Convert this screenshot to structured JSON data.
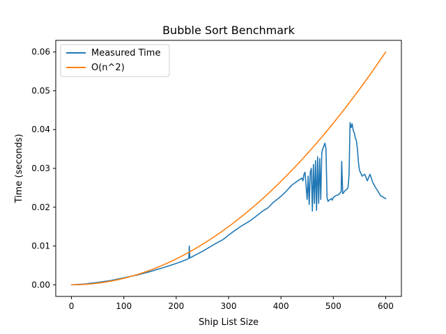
{
  "chart_data": {
    "type": "line",
    "title": "Bubble Sort Benchmark",
    "xlabel": "Ship List Size",
    "ylabel": "Time (seconds)",
    "xlim": [
      -30,
      630
    ],
    "ylim": [
      -0.003,
      0.063
    ],
    "xticks": [
      0,
      100,
      200,
      300,
      400,
      500,
      600
    ],
    "xtick_labels": [
      "0",
      "100",
      "200",
      "300",
      "400",
      "500",
      "600"
    ],
    "yticks": [
      0.0,
      0.01,
      0.02,
      0.03,
      0.04,
      0.05,
      0.06
    ],
    "ytick_labels": [
      "0.00",
      "0.01",
      "0.02",
      "0.03",
      "0.04",
      "0.05",
      "0.06"
    ],
    "grid": false,
    "legend_position": "top-left",
    "series": [
      {
        "name": "Measured Time",
        "color": "#1f77b4",
        "x": [
          0,
          25,
          50,
          75,
          100,
          125,
          150,
          175,
          200,
          210,
          220,
          224,
          225,
          226,
          230,
          240,
          250,
          260,
          275,
          290,
          300,
          310,
          325,
          340,
          350,
          365,
          375,
          385,
          400,
          410,
          420,
          430,
          440,
          442,
          444,
          446,
          448,
          450,
          452,
          454,
          456,
          458,
          460,
          462,
          464,
          466,
          468,
          470,
          472,
          474,
          476,
          478,
          480,
          482,
          484,
          486,
          488,
          490,
          492,
          494,
          496,
          498,
          500,
          505,
          510,
          515,
          516,
          518,
          520,
          522,
          525,
          528,
          530,
          532,
          534,
          536,
          538,
          540,
          542,
          544,
          546,
          548,
          550,
          555,
          560,
          565,
          570,
          575,
          580,
          585,
          590,
          600
        ],
        "y": [
          0.0,
          0.0002,
          0.0006,
          0.0011,
          0.0018,
          0.0025,
          0.0034,
          0.0044,
          0.0055,
          0.006,
          0.0065,
          0.0068,
          0.01,
          0.0069,
          0.0072,
          0.0079,
          0.0086,
          0.0094,
          0.0106,
          0.0117,
          0.0128,
          0.0138,
          0.0152,
          0.0164,
          0.0174,
          0.019,
          0.0198,
          0.0212,
          0.0228,
          0.0241,
          0.0256,
          0.0266,
          0.0275,
          0.0268,
          0.0285,
          0.029,
          0.0255,
          0.022,
          0.028,
          0.0207,
          0.029,
          0.03,
          0.019,
          0.031,
          0.021,
          0.032,
          0.0192,
          0.033,
          0.021,
          0.0325,
          0.022,
          0.034,
          0.0351,
          0.0358,
          0.0365,
          0.035,
          0.0225,
          0.0215,
          0.0218,
          0.022,
          0.0222,
          0.0218,
          0.0225,
          0.023,
          0.0232,
          0.024,
          0.0318,
          0.0235,
          0.0238,
          0.0242,
          0.0245,
          0.025,
          0.0282,
          0.0418,
          0.0405,
          0.0415,
          0.0398,
          0.0392,
          0.0378,
          0.0372,
          0.035,
          0.0315,
          0.0295,
          0.028,
          0.0285,
          0.0268,
          0.0285,
          0.0265,
          0.0252,
          0.0242,
          0.023,
          0.0222
        ]
      },
      {
        "name": "O(n^2)",
        "color": "#ff7f0e",
        "function": "quadratic",
        "x_max": 600,
        "y_at_x_max": 0.06
      }
    ]
  }
}
